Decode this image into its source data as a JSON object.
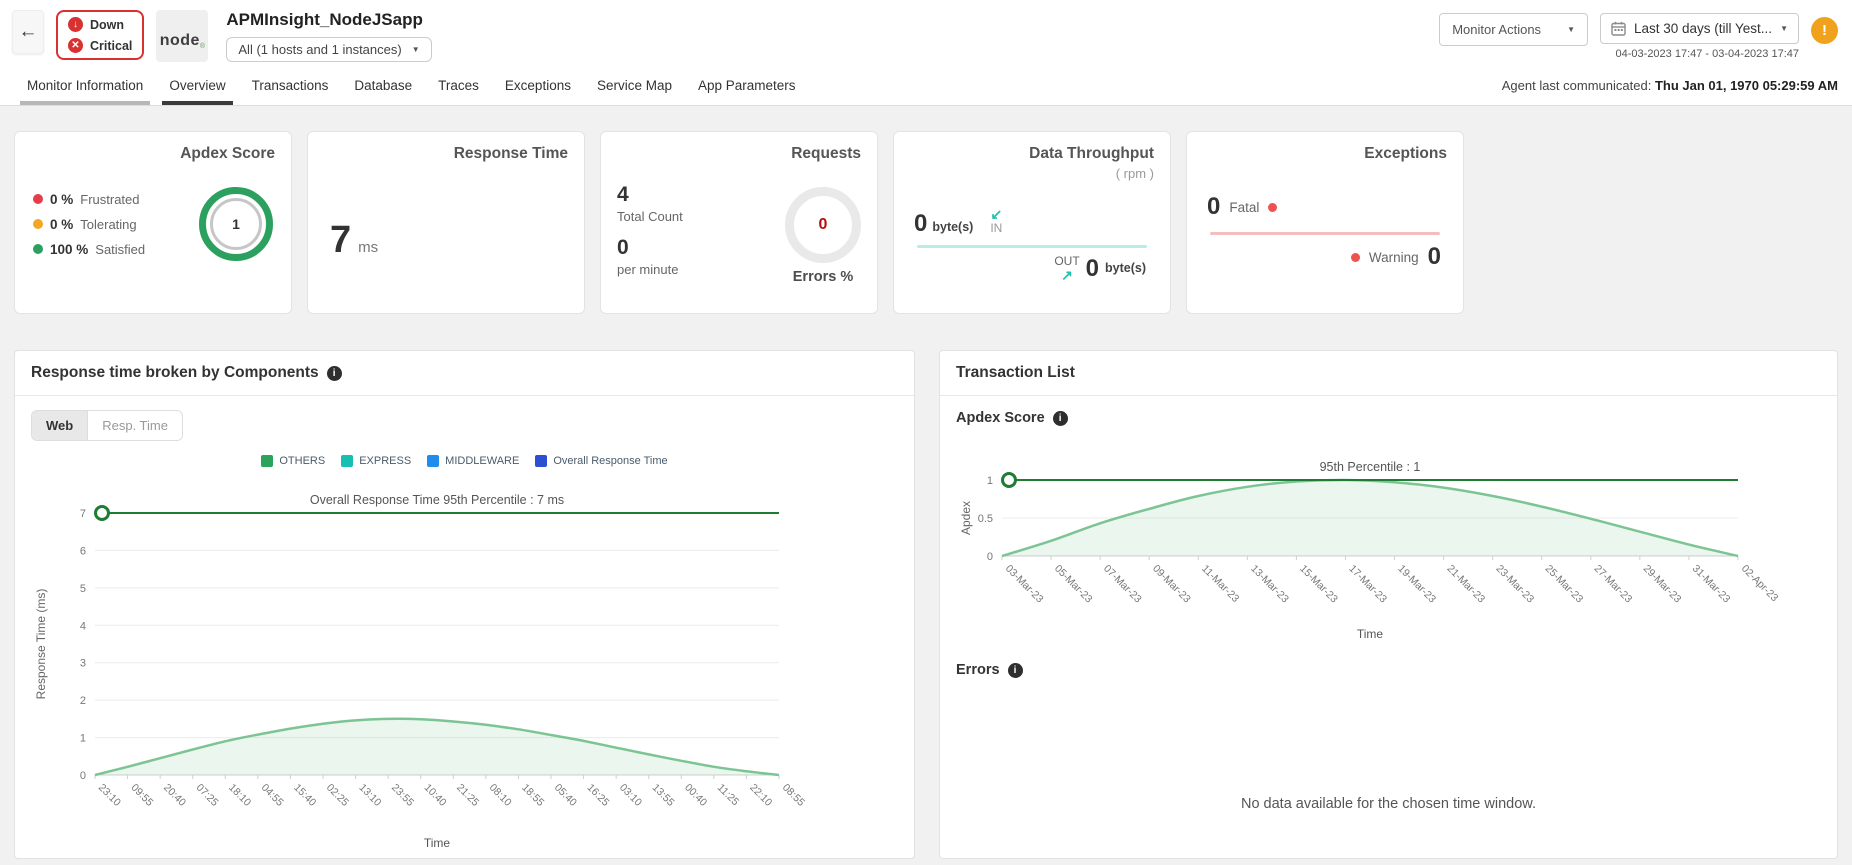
{
  "header": {
    "back_icon": "←",
    "status_badges": [
      {
        "label": "Down",
        "icon": "↓"
      },
      {
        "label": "Critical",
        "icon": "✕"
      }
    ],
    "logo_text": "node",
    "logo_reg": "®",
    "title": "APMInsight_NodeJSapp",
    "instance_selector": {
      "value": "All (1 hosts and 1 instances)",
      "caret": "▼"
    },
    "monitor_actions": {
      "label": "Monitor Actions",
      "caret": "▼"
    },
    "date_picker": {
      "label": "Last 30 days (till Yest...",
      "caret": "▼",
      "range": "04-03-2023 17:47 - 03-04-2023 17:47"
    },
    "alert_icon": "!"
  },
  "tabbar": {
    "tabs": [
      {
        "label": "Monitor Information",
        "state": "hover"
      },
      {
        "label": "Overview",
        "state": "active"
      },
      {
        "label": "Transactions",
        "state": ""
      },
      {
        "label": "Database",
        "state": ""
      },
      {
        "label": "Traces",
        "state": ""
      },
      {
        "label": "Exceptions",
        "state": ""
      },
      {
        "label": "Service Map",
        "state": ""
      },
      {
        "label": "App Parameters",
        "state": ""
      }
    ],
    "agent_label": "Agent last communicated:",
    "agent_value": "Thu Jan 01, 1970 05:29:59 AM"
  },
  "cards": {
    "apdex": {
      "title": "Apdex Score",
      "legend": [
        {
          "value": "0 %",
          "label": "Frustrated",
          "color": "#e53e4b"
        },
        {
          "value": "0 %",
          "label": "Tolerating",
          "color": "#f5a623"
        },
        {
          "value": "100 %",
          "label": "Satisfied",
          "color": "#2ba05f"
        }
      ],
      "score": "1"
    },
    "response_time": {
      "title": "Response Time",
      "value": "7",
      "unit": "ms"
    },
    "requests": {
      "title": "Requests",
      "metrics": [
        {
          "value": "4",
          "label": "Total Count"
        },
        {
          "value": "0",
          "label": "per minute"
        }
      ],
      "donut_value": "0",
      "donut_label": "Errors %"
    },
    "throughput": {
      "title": "Data Throughput",
      "subtitle": "( rpm )",
      "in": {
        "value": "0",
        "unit": "byte(s)",
        "label": "IN",
        "arrow": "↙"
      },
      "out": {
        "value": "0",
        "unit": "byte(s)",
        "label": "OUT",
        "arrow": "↗"
      }
    },
    "exceptions": {
      "title": "Exceptions",
      "fatal": {
        "value": "0",
        "label": "Fatal"
      },
      "warning": {
        "value": "0",
        "label": "Warning"
      }
    }
  },
  "left_panel": {
    "title": "Response time broken by Components",
    "info_icon": "i",
    "toggle": [
      {
        "label": "Web",
        "active": true
      },
      {
        "label": "Resp. Time",
        "active": false
      }
    ]
  },
  "right_panel": {
    "title": "Transaction List",
    "apdex_section": "Apdex Score",
    "errors_section": "Errors",
    "info_icon": "i",
    "no_data_message": "No data available for the chosen time window."
  },
  "chart_data": [
    {
      "id": "components-response-time",
      "type": "area",
      "annotation": "Overall Response Time 95th Percentile : 7 ms",
      "percentile_value": 7,
      "legend": [
        {
          "label": "OTHERS",
          "color": "#2aa45c"
        },
        {
          "label": "EXPRESS",
          "color": "#17bfb3"
        },
        {
          "label": "MIDDLEWARE",
          "color": "#1e8deb"
        },
        {
          "label": "Overall Response Time",
          "color": "#2d50d3"
        }
      ],
      "categories": [
        "23:10",
        "09:55",
        "20:40",
        "07:25",
        "18:10",
        "04:55",
        "15:40",
        "02:25",
        "13:10",
        "23:55",
        "10:40",
        "21:25",
        "08:10",
        "18:55",
        "05:40",
        "16:25",
        "03:10",
        "13:55",
        "00:40",
        "11:25",
        "22:10",
        "08:55"
      ],
      "values": [
        0,
        0.22,
        0.45,
        0.68,
        0.9,
        1.08,
        1.24,
        1.37,
        1.46,
        1.5,
        1.49,
        1.43,
        1.34,
        1.22,
        1.07,
        0.91,
        0.73,
        0.55,
        0.38,
        0.22,
        0.1,
        0
      ],
      "xlabel": "Time",
      "ylabel": "Response Time (ms)",
      "ylim": [
        0,
        7
      ],
      "yticks": [
        0,
        1,
        2,
        3,
        4,
        5,
        6,
        7
      ],
      "series_color": "#7cc494",
      "fill_color": "rgba(124,196,148,0.16)",
      "percentile_color": "#1e7d33"
    },
    {
      "id": "transaction-apdex",
      "type": "area",
      "annotation": "95th Percentile : 1",
      "percentile_value": 1,
      "categories": [
        "03-Mar-23",
        "05-Mar-23",
        "07-Mar-23",
        "09-Mar-23",
        "11-Mar-23",
        "13-Mar-23",
        "15-Mar-23",
        "17-Mar-23",
        "19-Mar-23",
        "21-Mar-23",
        "23-Mar-23",
        "25-Mar-23",
        "27-Mar-23",
        "29-Mar-23",
        "31-Mar-23",
        "02-Apr-23"
      ],
      "values": [
        0,
        0.2,
        0.43,
        0.62,
        0.79,
        0.91,
        0.98,
        1.0,
        0.97,
        0.9,
        0.79,
        0.65,
        0.49,
        0.32,
        0.15,
        0
      ],
      "xlabel": "Time",
      "ylabel": "Apdex",
      "ylim": [
        0,
        1
      ],
      "yticks": [
        0,
        0.5,
        1
      ],
      "series_color": "#7cc494",
      "fill_color": "rgba(124,196,148,0.16)",
      "percentile_color": "#1e7d33"
    }
  ]
}
